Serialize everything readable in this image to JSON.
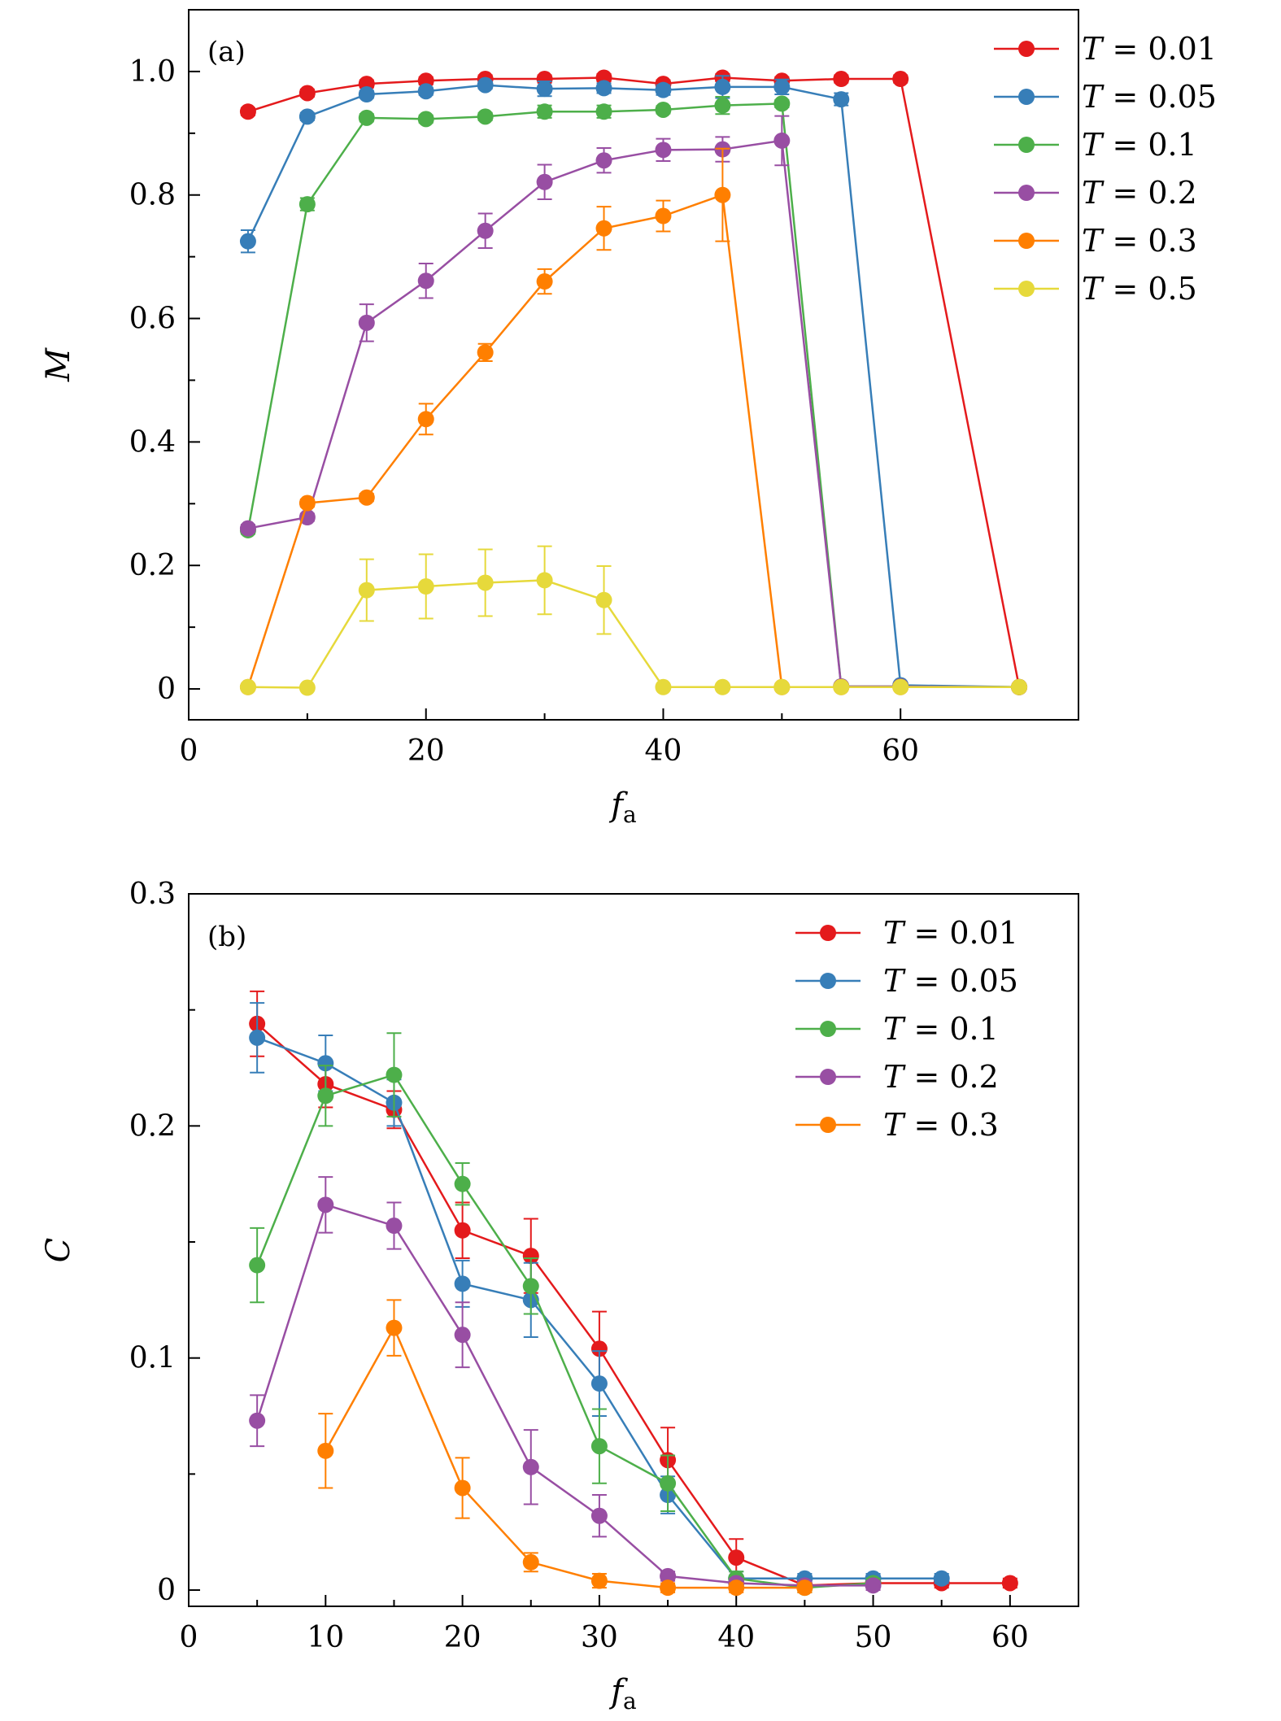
{
  "chart_data": [
    {
      "type": "line",
      "panel_label": "(a)",
      "xlabel": "f",
      "xlabel_sub": "a",
      "ylabel": "M",
      "xlim": [
        0,
        75
      ],
      "ylim": [
        -0.05,
        1.1
      ],
      "xticks": [
        0,
        20,
        40,
        60
      ],
      "xtick_labels": [
        "0",
        "20",
        "40",
        "60"
      ],
      "yticks": [
        0,
        0.2,
        0.4,
        0.6,
        0.8,
        1.0
      ],
      "ytick_labels": [
        "0",
        "0.2",
        "0.4",
        "0.6",
        "0.8",
        "1.0"
      ],
      "legend_position": "outside-right",
      "series": [
        {
          "name": "T = 0.01",
          "color": "#e41a1c",
          "x": [
            5,
            10,
            15,
            20,
            25,
            30,
            35,
            40,
            45,
            50,
            55,
            60,
            70
          ],
          "y": [
            0.935,
            0.965,
            0.98,
            0.985,
            0.988,
            0.988,
            0.99,
            0.98,
            0.99,
            0.985,
            0.988,
            0.988,
            0.003
          ],
          "err": [
            0.006,
            0.006,
            0.006,
            0.006,
            0.006,
            0.006,
            0.006,
            0.006,
            0.006,
            0.006,
            0.006,
            0.006,
            0.004
          ]
        },
        {
          "name": "T = 0.05",
          "color": "#377eb8",
          "x": [
            5,
            10,
            15,
            20,
            25,
            30,
            35,
            40,
            45,
            50,
            55,
            60,
            70
          ],
          "y": [
            0.725,
            0.927,
            0.963,
            0.968,
            0.978,
            0.972,
            0.973,
            0.97,
            0.975,
            0.975,
            0.955,
            0.006,
            0.003
          ],
          "err": [
            0.018,
            0.006,
            0.006,
            0.006,
            0.006,
            0.012,
            0.008,
            0.008,
            0.018,
            0.012,
            0.01,
            0.004,
            0.003
          ]
        },
        {
          "name": "T = 0.1",
          "color": "#4daf4a",
          "x": [
            5,
            10,
            15,
            20,
            25,
            30,
            35,
            40,
            45,
            50,
            55,
            60,
            70
          ],
          "y": [
            0.257,
            0.785,
            0.925,
            0.923,
            0.927,
            0.935,
            0.935,
            0.938,
            0.945,
            0.948,
            0.004,
            0.004,
            0.003
          ],
          "err": [
            0.006,
            0.01,
            0.006,
            0.006,
            0.006,
            0.01,
            0.01,
            0.006,
            0.014,
            0.006,
            0.003,
            0.003,
            0.003
          ]
        },
        {
          "name": "T = 0.2",
          "color": "#984ea3",
          "x": [
            5,
            10,
            15,
            20,
            25,
            30,
            35,
            40,
            45,
            50,
            55,
            60,
            70
          ],
          "y": [
            0.26,
            0.278,
            0.593,
            0.661,
            0.742,
            0.821,
            0.856,
            0.873,
            0.874,
            0.888,
            0.004,
            0.004,
            0.003
          ],
          "err": [
            0.006,
            0.006,
            0.03,
            0.028,
            0.028,
            0.028,
            0.02,
            0.018,
            0.02,
            0.04,
            0.003,
            0.003,
            0.003
          ]
        },
        {
          "name": "T = 0.3",
          "color": "#ff7f00",
          "x": [
            5,
            10,
            15,
            20,
            25,
            30,
            35,
            40,
            45,
            50,
            55,
            60,
            70
          ],
          "y": [
            0.003,
            0.301,
            0.31,
            0.437,
            0.545,
            0.66,
            0.746,
            0.766,
            0.8,
            0.003,
            0.003,
            0.003,
            0.003
          ],
          "err": [
            0.003,
            0.006,
            0.006,
            0.025,
            0.014,
            0.02,
            0.035,
            0.025,
            0.075,
            0.003,
            0.003,
            0.003,
            0.003
          ]
        },
        {
          "name": "T = 0.5",
          "color": "#e6d93b",
          "x": [
            5,
            10,
            15,
            20,
            25,
            30,
            35,
            40,
            45,
            50,
            55,
            60,
            70
          ],
          "y": [
            0.003,
            0.002,
            0.16,
            0.166,
            0.172,
            0.176,
            0.144,
            0.003,
            0.003,
            0.003,
            0.003,
            0.003,
            0.003
          ],
          "err": [
            0.003,
            0.003,
            0.05,
            0.052,
            0.054,
            0.055,
            0.055,
            0.003,
            0.003,
            0.003,
            0.003,
            0.003,
            0.003
          ]
        }
      ]
    },
    {
      "type": "line",
      "panel_label": "(b)",
      "xlabel": "f",
      "xlabel_sub": "a",
      "ylabel": "C",
      "xlim": [
        0,
        65
      ],
      "ylim": [
        -0.007,
        0.3
      ],
      "xticks": [
        0,
        10,
        20,
        30,
        40,
        50,
        60
      ],
      "xtick_labels": [
        "0",
        "10",
        "20",
        "30",
        "40",
        "50",
        "60"
      ],
      "yticks": [
        0,
        0.1,
        0.2,
        0.3
      ],
      "ytick_labels": [
        "0",
        "0.1",
        "0.2",
        "0.3"
      ],
      "legend_position": "top-right",
      "series": [
        {
          "name": "T = 0.01",
          "color": "#e41a1c",
          "x": [
            5,
            10,
            15,
            20,
            25,
            30,
            35,
            40,
            45,
            50,
            55,
            60
          ],
          "y": [
            0.244,
            0.218,
            0.207,
            0.155,
            0.144,
            0.104,
            0.056,
            0.014,
            0.002,
            0.003,
            0.003,
            0.003
          ],
          "err": [
            0.014,
            0.01,
            0.008,
            0.012,
            0.016,
            0.016,
            0.014,
            0.008,
            0.002,
            0.002,
            0.002,
            0.002
          ]
        },
        {
          "name": "T = 0.05",
          "color": "#377eb8",
          "x": [
            5,
            10,
            15,
            20,
            25,
            30,
            35,
            40,
            45,
            50,
            55
          ],
          "y": [
            0.238,
            0.227,
            0.21,
            0.132,
            0.125,
            0.089,
            0.041,
            0.005,
            0.005,
            0.005,
            0.005
          ],
          "err": [
            0.015,
            0.012,
            0.01,
            0.01,
            0.016,
            0.014,
            0.008,
            0.003,
            0.002,
            0.002,
            0.002
          ]
        },
        {
          "name": "T = 0.1",
          "color": "#4daf4a",
          "x": [
            5,
            10,
            15,
            20,
            25,
            30,
            35,
            40,
            45,
            50
          ],
          "y": [
            0.14,
            0.213,
            0.222,
            0.175,
            0.131,
            0.062,
            0.046,
            0.005,
            0.001,
            0.003
          ],
          "err": [
            0.016,
            0.013,
            0.018,
            0.009,
            0.012,
            0.016,
            0.012,
            0.003,
            0.002,
            0.002
          ]
        },
        {
          "name": "T = 0.2",
          "color": "#984ea3",
          "x": [
            5,
            10,
            15,
            20,
            25,
            30,
            35,
            40,
            45,
            50
          ],
          "y": [
            0.073,
            0.166,
            0.157,
            0.11,
            0.053,
            0.032,
            0.006,
            0.003,
            0.002,
            0.002
          ],
          "err": [
            0.011,
            0.012,
            0.01,
            0.014,
            0.016,
            0.009,
            0.002,
            0.002,
            0.002,
            0.002
          ]
        },
        {
          "name": "T = 0.3",
          "color": "#ff7f00",
          "x": [
            10,
            15,
            20,
            25,
            30,
            35,
            40,
            45
          ],
          "y": [
            0.06,
            0.113,
            0.044,
            0.012,
            0.004,
            0.001,
            0.001,
            0.001
          ],
          "err": [
            0.016,
            0.012,
            0.013,
            0.004,
            0.003,
            0.002,
            0.002,
            0.002
          ]
        }
      ]
    }
  ]
}
